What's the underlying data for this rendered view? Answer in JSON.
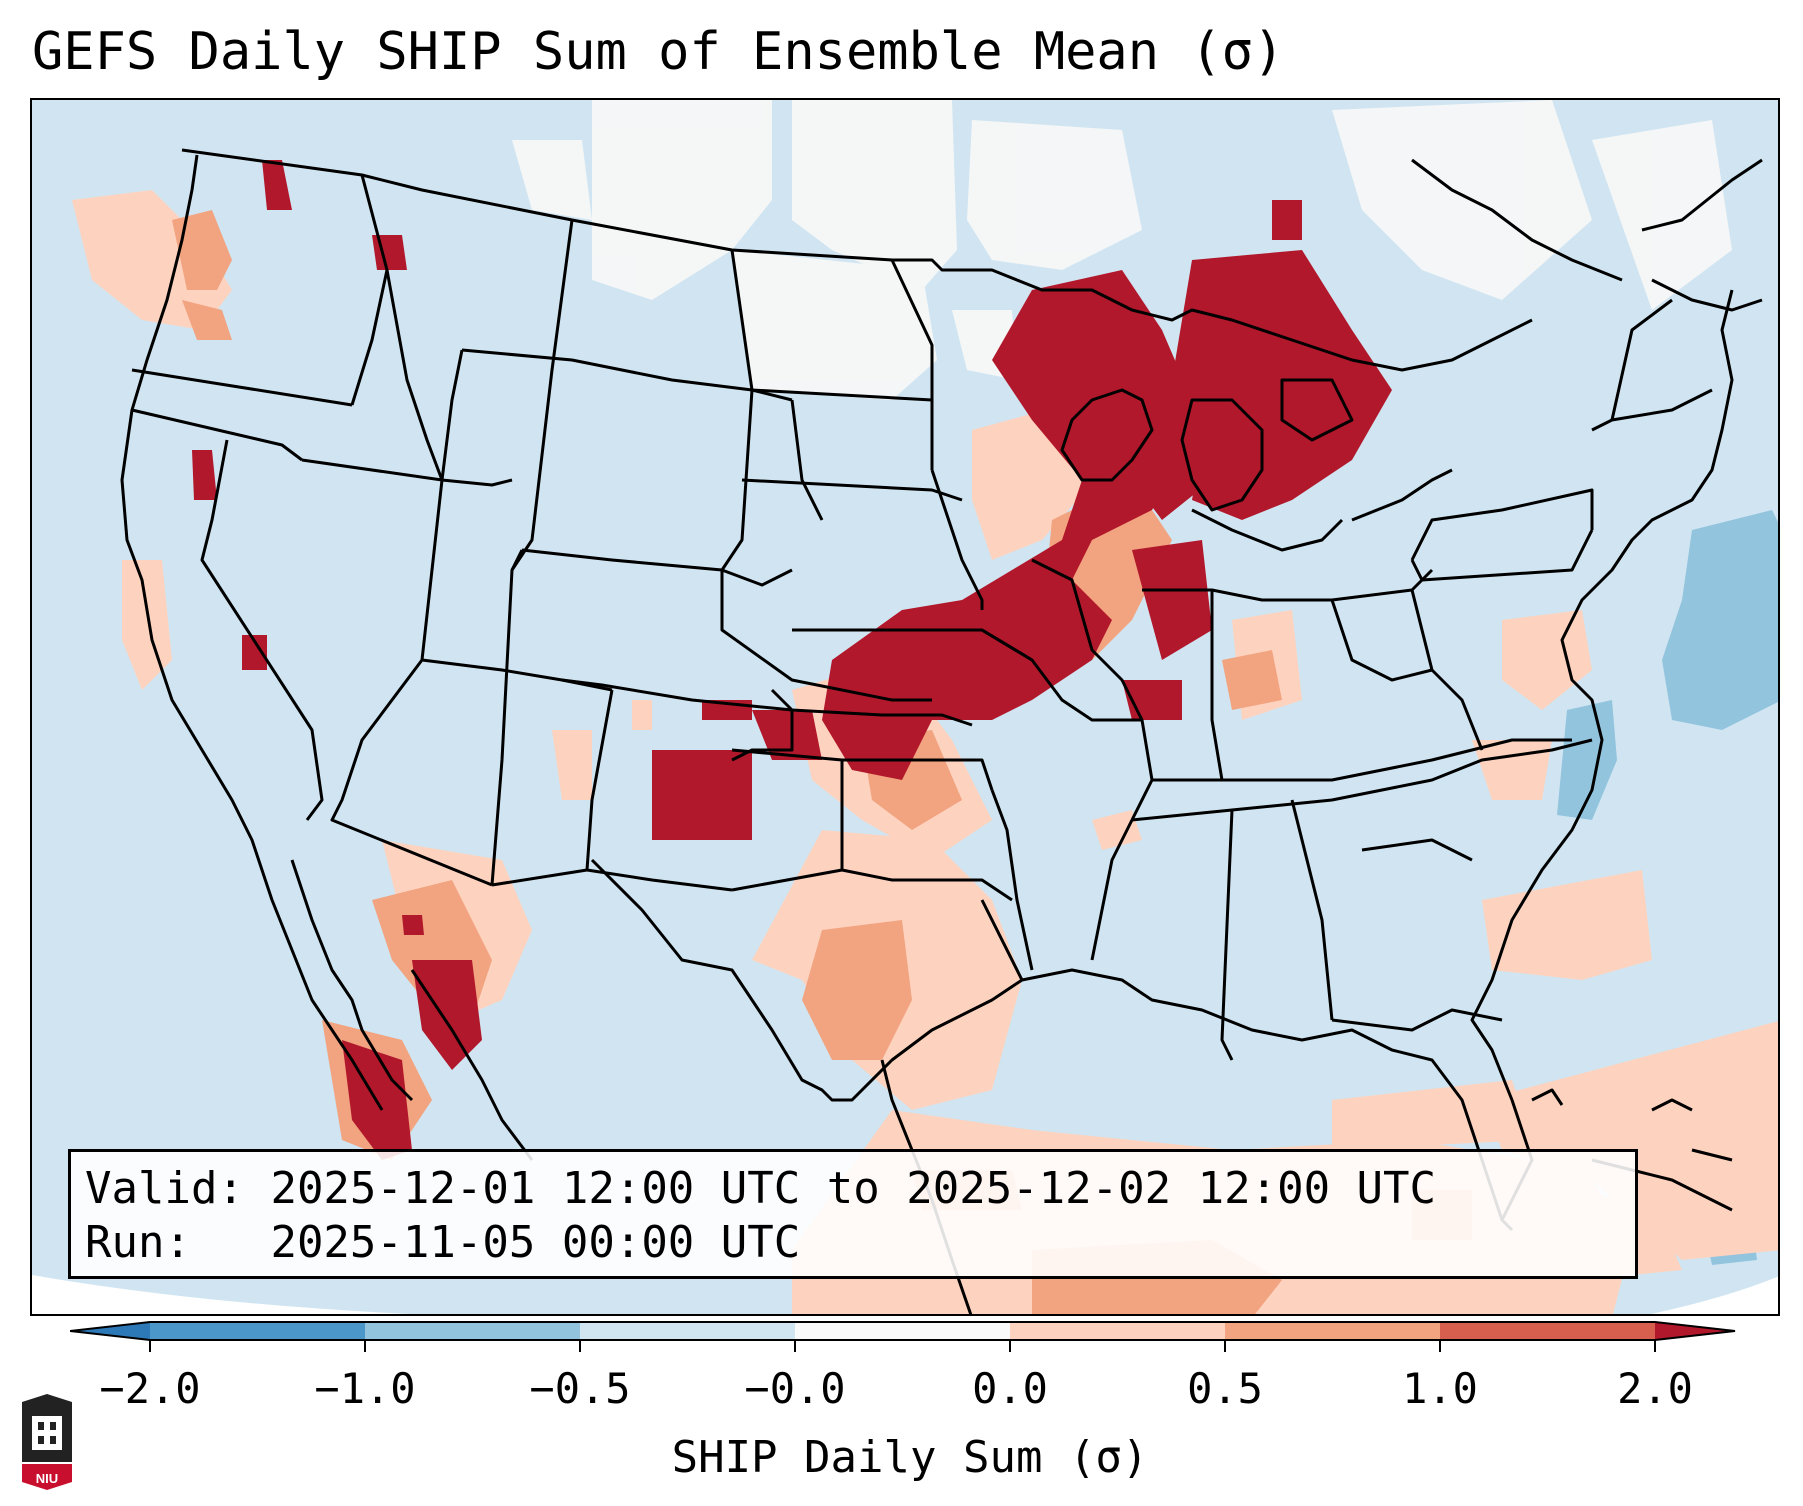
{
  "title": "GEFS Daily SHIP Sum of Ensemble Mean (σ)",
  "info": {
    "valid_label": "Valid:",
    "valid_value": "2025-12-01 12:00 UTC to 2025-12-02 12:00 UTC",
    "run_label": "Run:",
    "run_value": "2025-11-05 00:00 UTC"
  },
  "colorbar": {
    "label": "SHIP Daily Sum (σ)",
    "ticks": [
      "−2.0",
      "−1.0",
      "−0.5",
      "−0.0",
      "0.0",
      "0.5",
      "1.0",
      "2.0"
    ],
    "colors": [
      "#2d79b8",
      "#4c97c9",
      "#93c4de",
      "#d1e5f0",
      "#f9f9f9",
      "#fdd3bf",
      "#f2a380",
      "#d6604d",
      "#b2182b"
    ]
  },
  "logo": {
    "text": "NIU"
  }
}
